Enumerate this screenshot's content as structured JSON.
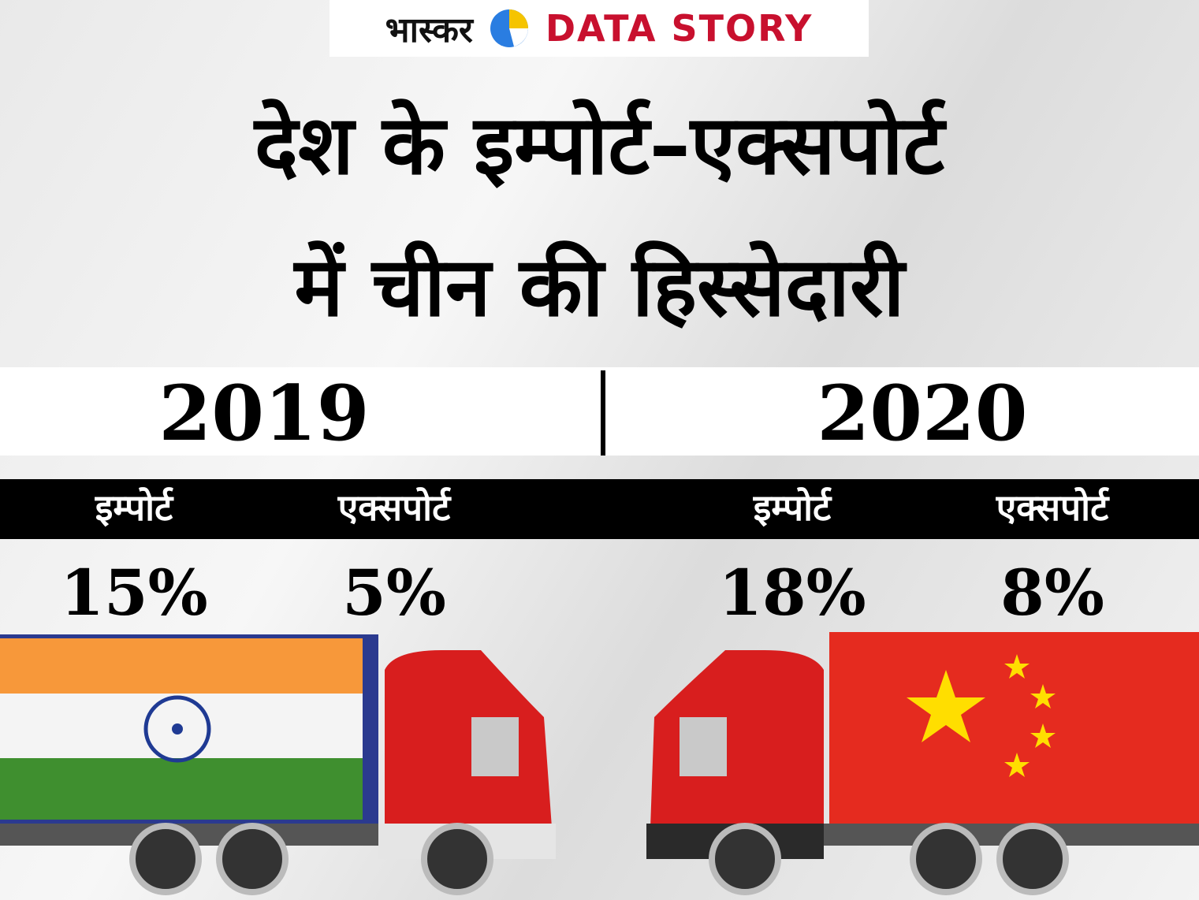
{
  "header": {
    "brand": "भास्कर",
    "label": "DATA STORY"
  },
  "title": [
    "देश के इम्पोर्ट–एक्सपोर्ट",
    "में चीन की हिस्सेदारी"
  ],
  "years": [
    {
      "year": "2019",
      "items": [
        {
          "label": "इम्पोर्ट",
          "value": "15%"
        },
        {
          "label": "एक्सपोर्ट",
          "value": "5%"
        }
      ]
    },
    {
      "year": "2020",
      "items": [
        {
          "label": "इम्पोर्ट",
          "value": "18%"
        },
        {
          "label": "एक्सपोर्ट",
          "value": "8%"
        }
      ]
    }
  ]
}
